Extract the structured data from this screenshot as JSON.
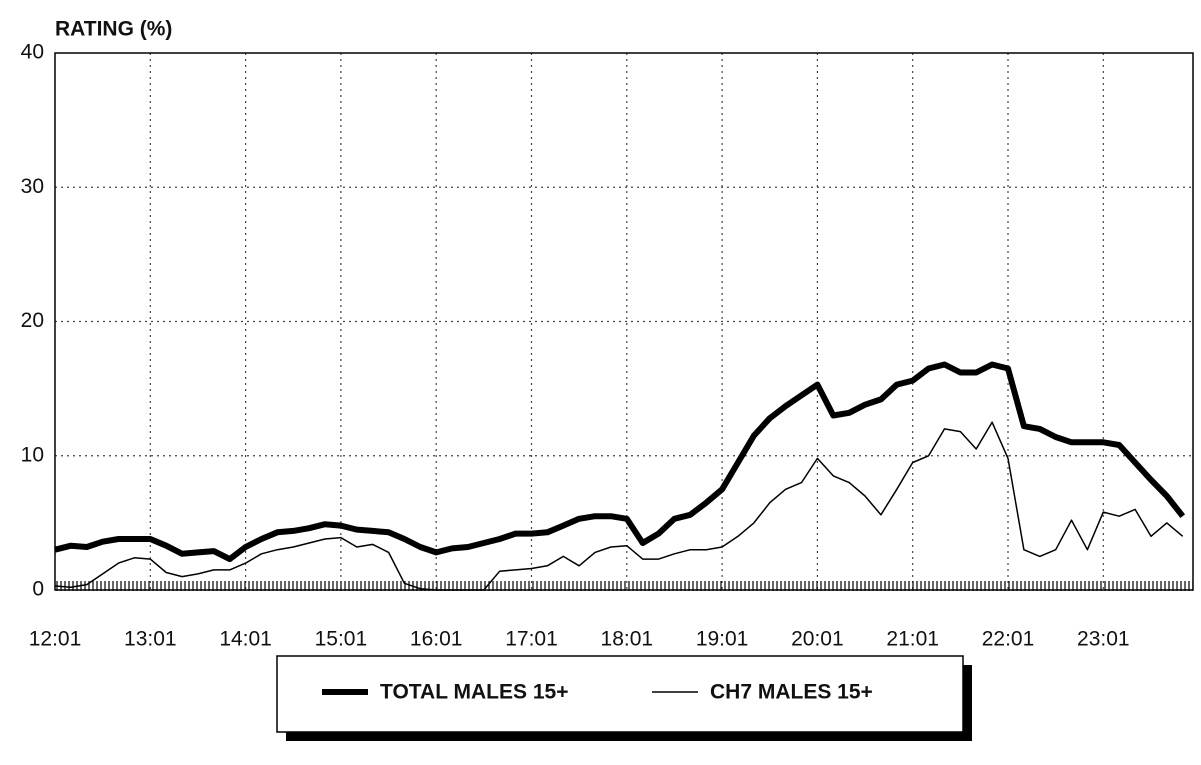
{
  "chart_data": {
    "type": "line",
    "y_axis_label": "RATING (%)",
    "categories": [
      "12:01",
      null,
      null,
      null,
      null,
      null,
      "13:01",
      null,
      null,
      null,
      null,
      null,
      "14:01",
      null,
      null,
      null,
      null,
      null,
      "15:01",
      null,
      null,
      null,
      null,
      null,
      "16:01",
      null,
      null,
      null,
      null,
      null,
      "17:01",
      null,
      null,
      null,
      null,
      null,
      "18:01",
      null,
      null,
      null,
      null,
      null,
      "19:01",
      null,
      null,
      null,
      null,
      null,
      "20:01",
      null,
      null,
      null,
      null,
      null,
      "21:01",
      null,
      null,
      null,
      null,
      null,
      "22:01",
      null,
      null,
      null,
      null,
      null,
      "23:01",
      null,
      null,
      null,
      null,
      null
    ],
    "series": [
      {
        "name": "TOTAL MALES 15+",
        "color": "#000000",
        "width": 6,
        "values": [
          3,
          3.3,
          3.2,
          3.6,
          3.8,
          3.8,
          3.8,
          3.3,
          2.7,
          2.8,
          2.9,
          2.3,
          3.2,
          3.8,
          4.3,
          4.4,
          4.6,
          4.9,
          4.8,
          4.5,
          4.4,
          4.3,
          3.8,
          3.2,
          2.8,
          3.1,
          3.2,
          3.5,
          3.8,
          4.2,
          4.2,
          4.3,
          4.8,
          5.3,
          5.5,
          5.5,
          5.3,
          3.5,
          4.2,
          5.3,
          5.6,
          6.5,
          7.5,
          9.5,
          11.5,
          12.8,
          13.7,
          14.5,
          15.3,
          13,
          13.2,
          13.8,
          14.2,
          15.3,
          15.6,
          16.5,
          16.8,
          16.2,
          16.2,
          16.8,
          16.5,
          12.2,
          12,
          11.4,
          11,
          11,
          11,
          10.8,
          9.5,
          8.2,
          7,
          5.5
        ]
      },
      {
        "name": "CH7 MALES 15+",
        "color": "#000000",
        "width": 1.5,
        "values": [
          0.3,
          0.2,
          0.4,
          1.2,
          2,
          2.4,
          2.3,
          1.3,
          1,
          1.2,
          1.5,
          1.5,
          2,
          2.7,
          3,
          3.2,
          3.5,
          3.8,
          3.9,
          3.2,
          3.4,
          2.8,
          0.5,
          0.1,
          0,
          0,
          0,
          0,
          1.4,
          1.5,
          1.6,
          1.8,
          2.5,
          1.8,
          2.8,
          3.2,
          3.3,
          2.3,
          2.3,
          2.7,
          3,
          3,
          3.2,
          4,
          5,
          6.5,
          7.5,
          8,
          9.8,
          8.5,
          8,
          7,
          5.6,
          7.5,
          9.5,
          10,
          12,
          11.8,
          10.5,
          12.5,
          9.8,
          3,
          2.5,
          3,
          5.2,
          3,
          5.8,
          5.5,
          6,
          4,
          5,
          4
        ]
      }
    ],
    "ylim": [
      0,
      40
    ],
    "yticks": [
      0,
      10,
      20,
      30,
      40
    ],
    "grid": true
  }
}
